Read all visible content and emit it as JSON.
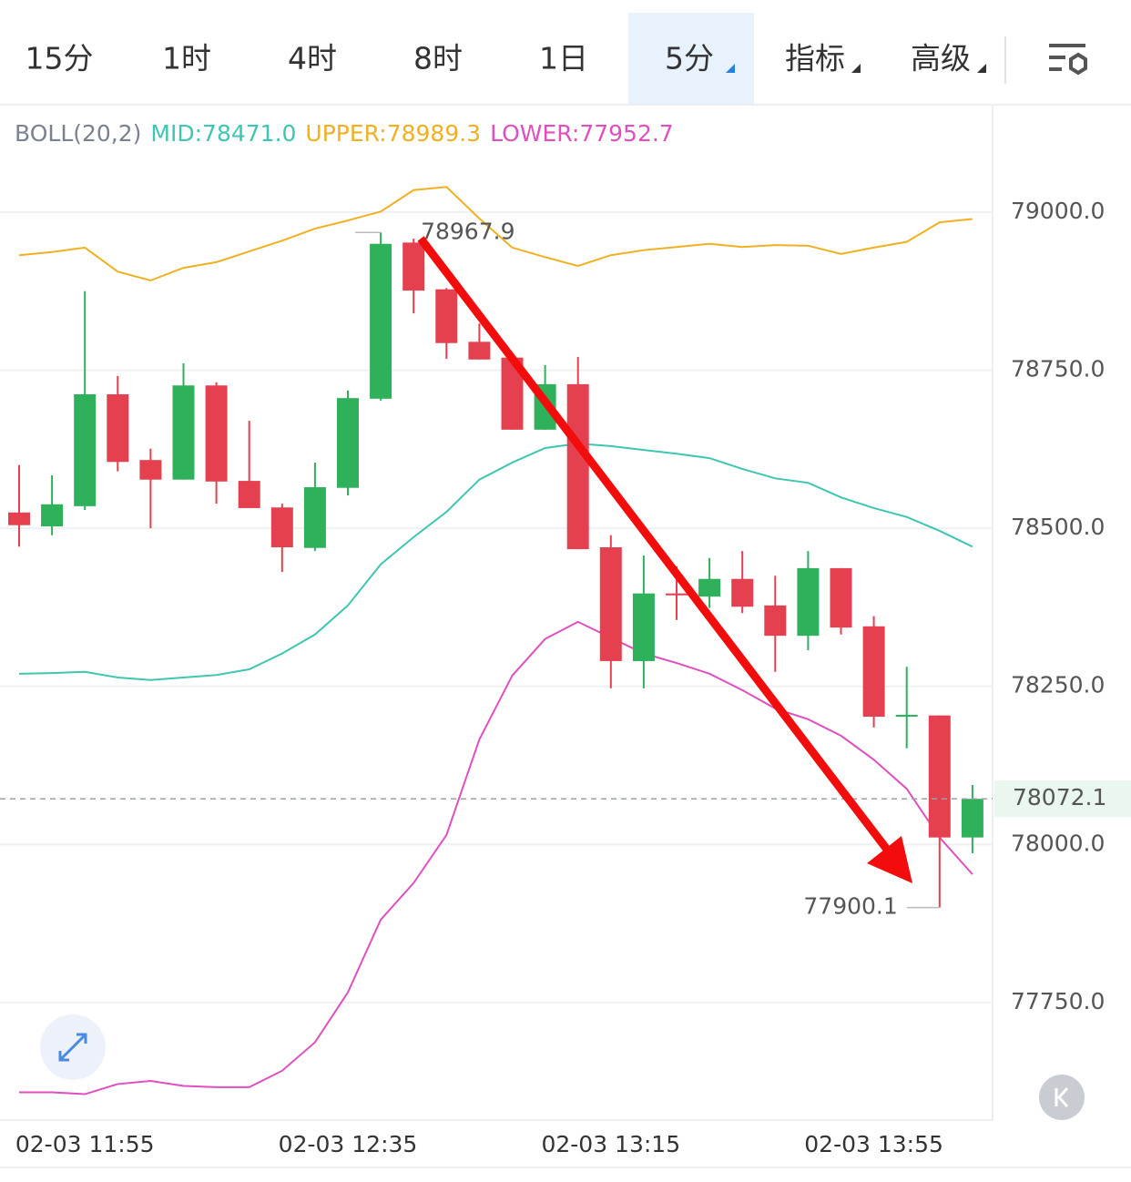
{
  "tabs": {
    "items": [
      "15分",
      "1时",
      "4时",
      "8时",
      "1日",
      "5分",
      "指标",
      "高级"
    ],
    "active": 5
  },
  "chart_data": {
    "type": "candlestick",
    "indicator_title": "BOLL(20,2)",
    "indicators": [
      {
        "label": "MID:78471.0",
        "color": "#3ec6b0",
        "values": [
          78270,
          78271,
          78273,
          78264,
          78260,
          78264,
          78268,
          78277,
          78302,
          78332,
          78378,
          78443,
          78486,
          78526,
          78577,
          78604,
          78627,
          78634,
          78630,
          78624,
          78618,
          78611,
          78594,
          78579,
          78572,
          78549,
          78532,
          78518,
          78496,
          78471.0
        ]
      },
      {
        "label": "UPPER:78989.3",
        "color": "#f0b021",
        "values": [
          78932,
          78937,
          78944,
          78906,
          78892,
          78912,
          78921,
          78938,
          78955,
          78974,
          78987,
          79001,
          79035,
          79040,
          78990,
          78944,
          78929,
          78915,
          78932,
          78940,
          78945,
          78950,
          78945,
          78948,
          78947,
          78934,
          78944,
          78953,
          78984,
          78989.3
        ]
      },
      {
        "label": "LOWER:77952.7",
        "color": "#e04fc0",
        "values": [
          77608,
          77608,
          77605,
          77621,
          77626,
          77618,
          77616,
          77616,
          77642,
          77687,
          77766,
          77881,
          77939,
          78015,
          78166,
          78267,
          78325,
          78352,
          78327,
          78302,
          78287,
          78270,
          78244,
          78215,
          78198,
          78172,
          78134,
          78088,
          78011,
          77952.7
        ]
      }
    ],
    "categories": [
      null,
      null,
      "02-03 11:55",
      null,
      null,
      null,
      null,
      null,
      null,
      null,
      "02-03 12:35",
      null,
      null,
      null,
      null,
      null,
      null,
      null,
      "02-03 13:15",
      null,
      null,
      null,
      null,
      null,
      null,
      null,
      "02-03 13:55",
      null,
      null,
      null
    ],
    "open": [
      78525,
      78503,
      78535,
      78712,
      78608,
      78577,
      78726,
      78575,
      78533,
      78469,
      78564,
      78705,
      78952,
      78878,
      78795,
      78770,
      78656,
      78728,
      78470,
      78290,
      78397,
      78392,
      78420,
      78378,
      78330,
      78437,
      78345,
      78202,
      78204,
      78011
    ],
    "high": [
      78600,
      78584,
      78875,
      78741,
      78626,
      78761,
      78731,
      78670,
      78539,
      78604,
      78718,
      78967.9,
      78958,
      78880,
      78824,
      78770,
      78758,
      78771,
      78489,
      78457,
      78440,
      78453,
      78464,
      78425,
      78464,
      78437,
      78361,
      78281,
      78204,
      78094
    ],
    "low": [
      78471,
      78489,
      78529,
      78590,
      78500,
      78577,
      78539,
      78532,
      78431,
      78464,
      78552,
      78702,
      78840,
      78768,
      78767,
      78656,
      78656,
      78467,
      78247,
      78247,
      78355,
      78374,
      78366,
      78273,
      78307,
      78332,
      78185,
      78152,
      77900.1,
      77986
    ],
    "close": [
      78505,
      78538,
      78712,
      78605,
      78577,
      78726,
      78574,
      78532,
      78470,
      78565,
      78706,
      78950,
      78876,
      78793,
      78767,
      78656,
      78728,
      78467,
      78290,
      78397,
      78394,
      78420,
      78376,
      78330,
      78437,
      78343,
      78202,
      78205,
      78011,
      78072.1
    ],
    "up_color": "#2fb15c",
    "down_color": "#e5404f",
    "ylim": [
      77564,
      79170
    ],
    "yticks": [
      {
        "value": 77750,
        "label": "77750.0"
      },
      {
        "value": 78000,
        "label": "78000.0"
      },
      {
        "value": 78250,
        "label": "78250.0"
      },
      {
        "value": 78500,
        "label": "78500.0"
      },
      {
        "value": 78750,
        "label": "78750.0"
      },
      {
        "value": 79000,
        "label": "79000.0"
      }
    ],
    "grid": true,
    "high_marker": 78967.9,
    "low_marker": 77900.1,
    "last_price": 78072.1
  }
}
